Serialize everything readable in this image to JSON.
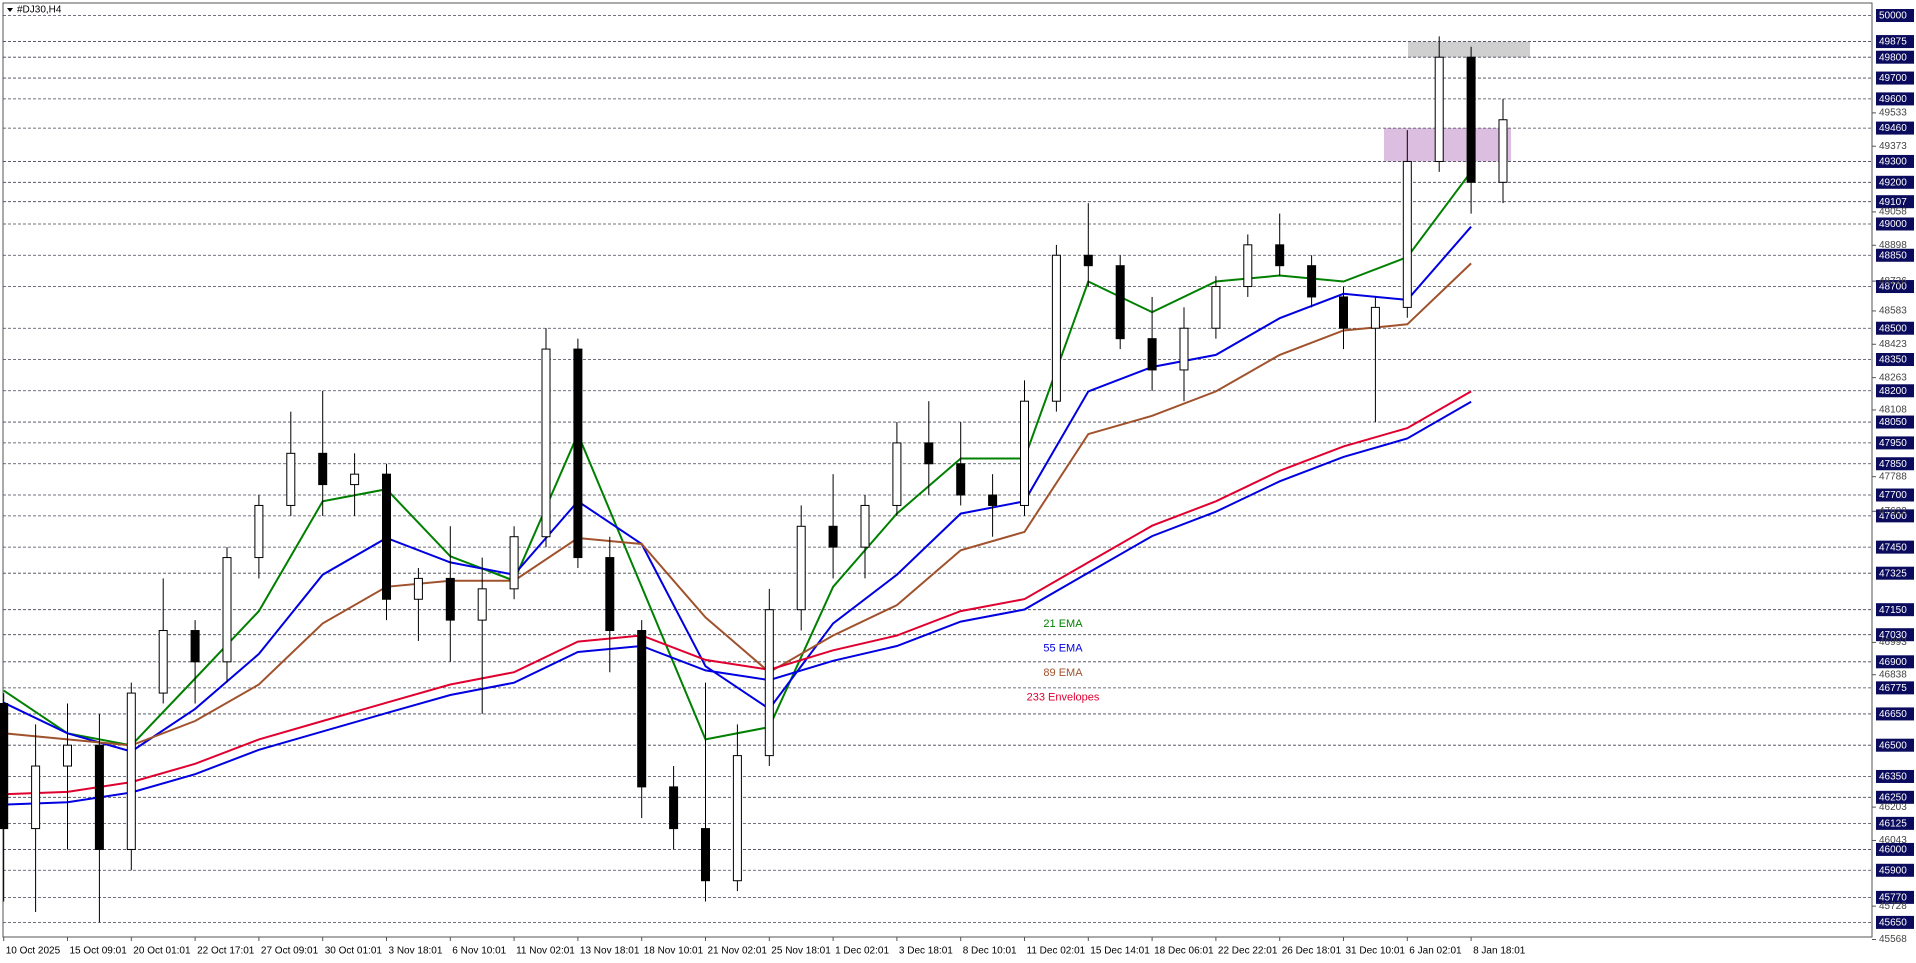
{
  "chart_data": {
    "type": "candlestick",
    "title": "#DJ30,H4",
    "categories": [
      "10 Oct 2025",
      "15 Oct 09:01",
      "20 Oct 01:01",
      "22 Oct 17:01",
      "27 Oct 09:01",
      "30 Oct 01:01",
      "3 Nov 18:01",
      "6 Nov 10:01",
      "11 Nov 02:01",
      "13 Nov 18:01",
      "18 Nov 10:01",
      "21 Nov 02:01",
      "25 Nov 18:01",
      "1 Dec 02:01",
      "3 Dec 18:01",
      "8 Dec 10:01",
      "11 Dec 02:01",
      "15 Dec 14:01",
      "18 Dec 06:01",
      "22 Dec 22:01",
      "26 Dec 18:01",
      "31 Dec 10:01",
      "6 Jan 02:01",
      "8 Jan 18:01"
    ],
    "candles": {
      "open": [
        46700,
        46100,
        46400,
        46500,
        46000,
        46750,
        47050,
        46900,
        47400,
        47650,
        47900,
        47750,
        47800,
        47200,
        47300,
        47100,
        47250,
        47500,
        48400,
        47400,
        47050,
        46300,
        46100,
        45850,
        46450,
        47150,
        47550,
        47450,
        47650,
        47950,
        47850,
        47700,
        47650,
        48150,
        48850,
        48800,
        48450,
        48300,
        48500,
        48700,
        48900,
        48800,
        48650,
        48500,
        48600,
        49300,
        49800,
        49200
      ],
      "high": [
        46750,
        46600,
        46700,
        46650,
        46800,
        47300,
        47100,
        47450,
        47700,
        48100,
        48200,
        47900,
        47850,
        47350,
        47550,
        47400,
        47550,
        48500,
        48450,
        47500,
        47100,
        46400,
        46800,
        46600,
        47250,
        47650,
        47800,
        47700,
        48050,
        48150,
        48050,
        47800,
        48250,
        48900,
        49100,
        48850,
        48650,
        48600,
        48750,
        48950,
        49050,
        48850,
        48700,
        48650,
        49450,
        49900,
        49850,
        49600
      ],
      "low": [
        45750,
        45700,
        46000,
        45650,
        45900,
        46700,
        46700,
        46800,
        47300,
        47600,
        47600,
        47600,
        47100,
        47000,
        46900,
        46650,
        47200,
        47450,
        47350,
        46850,
        46150,
        46000,
        45750,
        45800,
        46400,
        47050,
        47300,
        47300,
        47600,
        47700,
        47650,
        47500,
        47600,
        48100,
        48700,
        48400,
        48200,
        48150,
        48450,
        48650,
        48750,
        48600,
        48400,
        48050,
        48550,
        49250,
        49050,
        49100
      ],
      "close": [
        46100,
        46400,
        46500,
        46000,
        46750,
        47050,
        46900,
        47400,
        47650,
        47900,
        47750,
        47800,
        47200,
        47300,
        47100,
        47250,
        47500,
        48400,
        47400,
        47050,
        46300,
        46100,
        45850,
        46450,
        47150,
        47550,
        47450,
        47650,
        47950,
        47850,
        47700,
        47650,
        48150,
        48850,
        48800,
        48450,
        48300,
        48500,
        48700,
        48900,
        48800,
        48650,
        48500,
        48600,
        49300,
        49800,
        49200,
        49500
      ]
    },
    "series": [
      {
        "name": "21 EMA",
        "color": "#008000",
        "values": [
          46762,
          46557,
          46499,
          46820,
          47143,
          47670,
          47728,
          47406,
          47289,
          47992,
          47260,
          46528,
          46587,
          47260,
          47611,
          47875,
          47875,
          48724,
          48577,
          48724,
          48753,
          48724,
          48841,
          49251
        ]
      },
      {
        "name": "55 EMA",
        "color": "#0000e0",
        "values": [
          46704,
          46557,
          46470,
          46674,
          46938,
          47318,
          47494,
          47377,
          47318,
          47670,
          47465,
          46879,
          46674,
          47084,
          47318,
          47611,
          47670,
          48197,
          48314,
          48372,
          48548,
          48665,
          48636,
          48987
        ]
      },
      {
        "name": "89 EMA",
        "color": "#a0522d",
        "values": [
          46557,
          46528,
          46499,
          46616,
          46791,
          47084,
          47260,
          47289,
          47289,
          47494,
          47465,
          47113,
          46850,
          47026,
          47172,
          47435,
          47523,
          47992,
          48080,
          48197,
          48372,
          48489,
          48519,
          48811
        ]
      },
      {
        "name": "233 Envelopes",
        "color": "#e00030",
        "values": [
          46265,
          46276,
          46323,
          46411,
          46528,
          46616,
          46704,
          46791,
          46850,
          46997,
          47026,
          46909,
          46862,
          46955,
          47026,
          47143,
          47201,
          47377,
          47553,
          47670,
          47816,
          47933,
          48021,
          48197
        ],
        "lower": {
          "color": "#0000e0",
          "values": [
            46215,
            46226,
            46273,
            46361,
            46478,
            46566,
            46654,
            46741,
            46800,
            46947,
            46976,
            46859,
            46812,
            46905,
            46976,
            47093,
            47151,
            47327,
            47503,
            47620,
            47766,
            47883,
            47971,
            48147
          ]
        }
      }
    ],
    "ylim": [
      45580,
      50060
    ],
    "yticks": [
      49533,
      49373,
      49058,
      48898,
      48726,
      48583,
      48423,
      48263,
      48108,
      47788,
      47622,
      46993,
      46838,
      46203,
      46043,
      45728,
      45568
    ],
    "levels": [
      50000,
      49875,
      49800,
      49700,
      49600,
      49460,
      49300,
      49200,
      49107,
      49000,
      48850,
      48700,
      48500,
      48350,
      48200,
      48050,
      47950,
      47850,
      47700,
      47600,
      47450,
      47325,
      47150,
      47030,
      46900,
      46775,
      46650,
      46500,
      46350,
      46250,
      46125,
      46000,
      45900,
      45770,
      45650
    ],
    "zones": [
      {
        "ylim": [
          49800,
          49875
        ],
        "color": "#cfcfcf"
      },
      {
        "ylim": [
          49300,
          49460
        ],
        "color": "#dcbfe0"
      }
    ]
  }
}
